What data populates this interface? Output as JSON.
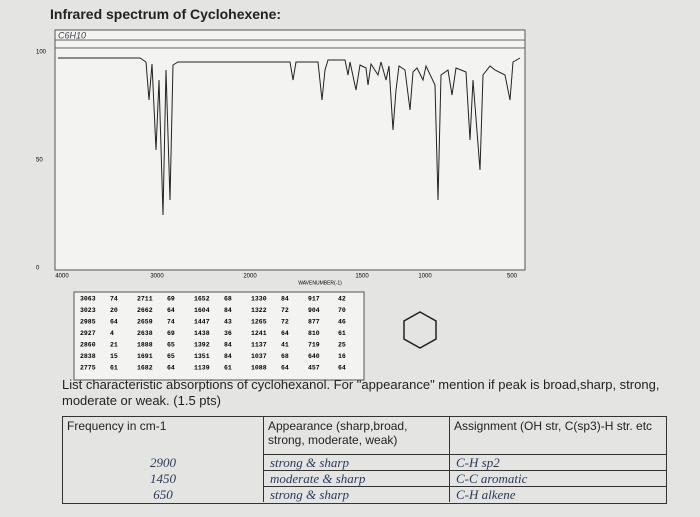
{
  "title": "Infrared spectrum of Cyclohexene:",
  "formula_note": "C6H10",
  "spectrum": {
    "y_labels": [
      "100",
      "50",
      "0"
    ],
    "x_labels": [
      "4000",
      "3000",
      "2000",
      "1500",
      "1000",
      "500"
    ],
    "x_axis_label": "WAVENUMBER(-1)"
  },
  "peak_table": [
    [
      [
        "3063",
        "74"
      ],
      [
        "3023",
        "20"
      ],
      [
        "2985",
        "64"
      ],
      [
        "2927",
        "4"
      ],
      [
        "2860",
        "21"
      ],
      [
        "2838",
        "15"
      ],
      [
        "2775",
        "61"
      ]
    ],
    [
      [
        "2711",
        "69"
      ],
      [
        "2662",
        "64"
      ],
      [
        "2659",
        "74"
      ],
      [
        "2638",
        "69"
      ],
      [
        "1888",
        "65"
      ],
      [
        "1691",
        "65"
      ],
      [
        "1682",
        "64"
      ]
    ],
    [
      [
        "1652",
        "68"
      ],
      [
        "1604",
        "84"
      ],
      [
        "1447",
        "43"
      ],
      [
        "1438",
        "36"
      ],
      [
        "1392",
        "84"
      ],
      [
        "1351",
        "84"
      ],
      [
        "1139",
        "61"
      ]
    ],
    [
      [
        "1330",
        "84"
      ],
      [
        "1322",
        "72"
      ],
      [
        "1265",
        "72"
      ],
      [
        "1241",
        "64"
      ],
      [
        "1137",
        "41"
      ],
      [
        "1037",
        "68"
      ],
      [
        "1088",
        "64"
      ]
    ],
    [
      [
        "917",
        "42"
      ],
      [
        "904",
        "70"
      ],
      [
        "877",
        "46"
      ],
      [
        "810",
        "61"
      ],
      [
        "719",
        "25"
      ],
      [
        "640",
        "16"
      ],
      [
        "457",
        "64"
      ]
    ]
  ],
  "question": "List characteristic absorptions of cyclohexanol. For \"appearance\" mention if peak is broad,sharp, strong, moderate or weak. (1.5 pts)",
  "answer_table": {
    "headers": [
      "Frequency in cm-1",
      "Appearance (sharp,broad, strong, moderate, weak)",
      "Assignment (OH str, C(sp3)-H str. etc"
    ],
    "rows": [
      [
        "2900",
        "strong & sharp",
        "C-H sp2"
      ],
      [
        "1450",
        "moderate & sharp",
        "C-C aromatic"
      ],
      [
        "650",
        "strong & sharp",
        "C-H alkene"
      ]
    ]
  }
}
